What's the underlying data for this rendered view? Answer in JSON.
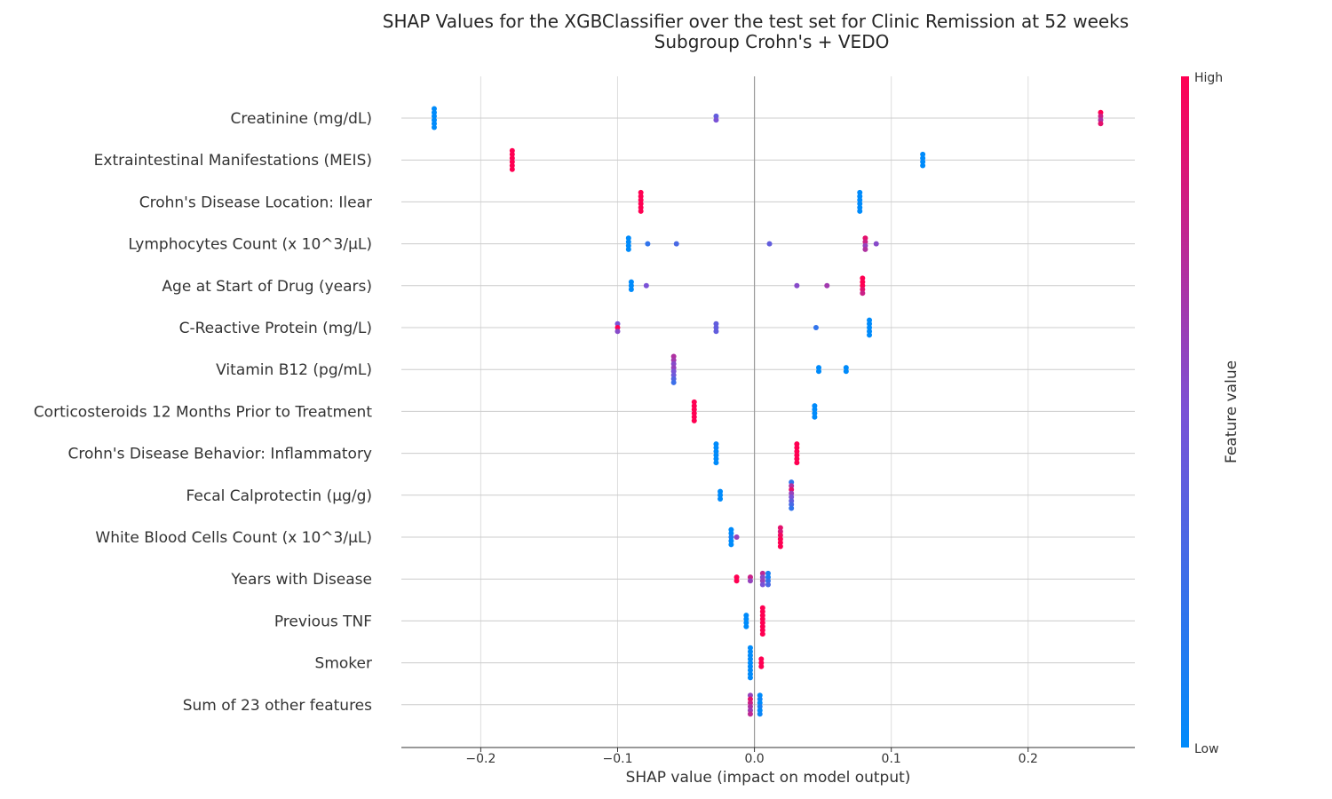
{
  "chart_data": {
    "type": "scatter",
    "subtype": "shap-beeswarm",
    "title": "SHAP Values for the XGBClassifier over the test set for Clinic Remission at 52 weeks",
    "subtitle": "Subgroup Crohn's + VEDO",
    "xlabel": "SHAP value (impact on model output)",
    "xlim": [
      -0.258,
      0.278
    ],
    "xticks": [
      -0.2,
      -0.1,
      0.0,
      0.1,
      0.2
    ],
    "xtick_labels": [
      "−0.2",
      "−0.1",
      "0.0",
      "0.1",
      "0.2"
    ],
    "grid": true,
    "colorbar": {
      "label": "Feature value",
      "high_label": "High",
      "low_label": "Low",
      "low_color": "#008bfb",
      "high_color": "#ff0052"
    },
    "features": [
      {
        "name": "Creatinine (mg/dL)",
        "points": [
          {
            "x": -0.234,
            "v": 0
          },
          {
            "x": -0.234,
            "v": 0
          },
          {
            "x": -0.234,
            "v": 0
          },
          {
            "x": -0.234,
            "v": 0
          },
          {
            "x": -0.234,
            "v": 0
          },
          {
            "x": -0.234,
            "v": 0
          },
          {
            "x": -0.028,
            "v": 0.4
          },
          {
            "x": -0.028,
            "v": 0.5
          },
          {
            "x": 0.253,
            "v": 1
          },
          {
            "x": 0.253,
            "v": 0.8
          },
          {
            "x": 0.253,
            "v": 0.7
          },
          {
            "x": 0.253,
            "v": 0.9
          }
        ]
      },
      {
        "name": "Extraintestinal Manifestations (MEIS)",
        "points": [
          {
            "x": -0.177,
            "v": 1
          },
          {
            "x": -0.177,
            "v": 1
          },
          {
            "x": -0.177,
            "v": 1
          },
          {
            "x": -0.177,
            "v": 1
          },
          {
            "x": -0.177,
            "v": 1
          },
          {
            "x": -0.177,
            "v": 1
          },
          {
            "x": 0.123,
            "v": 0
          },
          {
            "x": 0.123,
            "v": 0
          },
          {
            "x": 0.123,
            "v": 0
          },
          {
            "x": 0.123,
            "v": 0
          }
        ]
      },
      {
        "name": "Crohn's Disease Location: Ilear",
        "points": [
          {
            "x": -0.083,
            "v": 1
          },
          {
            "x": -0.083,
            "v": 1
          },
          {
            "x": -0.083,
            "v": 1
          },
          {
            "x": -0.083,
            "v": 1
          },
          {
            "x": -0.083,
            "v": 1
          },
          {
            "x": -0.083,
            "v": 1
          },
          {
            "x": 0.077,
            "v": 0
          },
          {
            "x": 0.077,
            "v": 0
          },
          {
            "x": 0.077,
            "v": 0
          },
          {
            "x": 0.077,
            "v": 0
          },
          {
            "x": 0.077,
            "v": 0
          },
          {
            "x": 0.077,
            "v": 0
          }
        ]
      },
      {
        "name": "Lymphocytes Count (x 10^3/µL)",
        "points": [
          {
            "x": -0.092,
            "v": 0
          },
          {
            "x": -0.092,
            "v": 0
          },
          {
            "x": -0.092,
            "v": 0
          },
          {
            "x": -0.092,
            "v": 0
          },
          {
            "x": -0.078,
            "v": 0.2
          },
          {
            "x": -0.057,
            "v": 0.3
          },
          {
            "x": 0.011,
            "v": 0.4
          },
          {
            "x": 0.081,
            "v": 0.9
          },
          {
            "x": 0.081,
            "v": 0.8
          },
          {
            "x": 0.081,
            "v": 0.6
          },
          {
            "x": 0.081,
            "v": 0.7
          },
          {
            "x": 0.089,
            "v": 0.55
          }
        ]
      },
      {
        "name": "Age at Start of Drug (years)",
        "points": [
          {
            "x": -0.09,
            "v": 0
          },
          {
            "x": -0.09,
            "v": 0
          },
          {
            "x": -0.09,
            "v": 0
          },
          {
            "x": -0.079,
            "v": 0.5
          },
          {
            "x": 0.031,
            "v": 0.55
          },
          {
            "x": 0.053,
            "v": 0.65
          },
          {
            "x": 0.079,
            "v": 1
          },
          {
            "x": 0.079,
            "v": 1
          },
          {
            "x": 0.079,
            "v": 1
          },
          {
            "x": 0.079,
            "v": 0.9
          },
          {
            "x": 0.079,
            "v": 0.8
          }
        ]
      },
      {
        "name": "C-Reactive Protein (mg/L)",
        "points": [
          {
            "x": -0.1,
            "v": 0.5
          },
          {
            "x": -0.1,
            "v": 1
          },
          {
            "x": -0.1,
            "v": 0.55
          },
          {
            "x": -0.028,
            "v": 0.4
          },
          {
            "x": -0.028,
            "v": 0.4
          },
          {
            "x": -0.028,
            "v": 0.4
          },
          {
            "x": 0.045,
            "v": 0.2
          },
          {
            "x": 0.084,
            "v": 0
          },
          {
            "x": 0.084,
            "v": 0
          },
          {
            "x": 0.084,
            "v": 0
          },
          {
            "x": 0.084,
            "v": 0
          },
          {
            "x": 0.084,
            "v": 0
          }
        ]
      },
      {
        "name": "Vitamin B12 (pg/mL)",
        "points": [
          {
            "x": -0.059,
            "v": 0.7
          },
          {
            "x": -0.059,
            "v": 0.65
          },
          {
            "x": -0.059,
            "v": 0.55
          },
          {
            "x": -0.059,
            "v": 0.6
          },
          {
            "x": -0.059,
            "v": 0.5
          },
          {
            "x": -0.059,
            "v": 0.45
          },
          {
            "x": -0.059,
            "v": 0.35
          },
          {
            "x": -0.059,
            "v": 0.25
          },
          {
            "x": 0.047,
            "v": 0
          },
          {
            "x": 0.047,
            "v": 0
          },
          {
            "x": 0.067,
            "v": 0
          },
          {
            "x": 0.067,
            "v": 0
          }
        ]
      },
      {
        "name": "Corticosteroids 12 Months Prior to Treatment",
        "points": [
          {
            "x": -0.044,
            "v": 1
          },
          {
            "x": -0.044,
            "v": 1
          },
          {
            "x": -0.044,
            "v": 1
          },
          {
            "x": -0.044,
            "v": 1
          },
          {
            "x": -0.044,
            "v": 1
          },
          {
            "x": -0.044,
            "v": 1
          },
          {
            "x": 0.044,
            "v": 0
          },
          {
            "x": 0.044,
            "v": 0
          },
          {
            "x": 0.044,
            "v": 0
          },
          {
            "x": 0.044,
            "v": 0
          }
        ]
      },
      {
        "name": "Crohn's Disease Behavior: Inflammatory",
        "points": [
          {
            "x": -0.028,
            "v": 0
          },
          {
            "x": -0.028,
            "v": 0
          },
          {
            "x": -0.028,
            "v": 0
          },
          {
            "x": -0.028,
            "v": 0
          },
          {
            "x": -0.028,
            "v": 0
          },
          {
            "x": -0.028,
            "v": 0
          },
          {
            "x": 0.031,
            "v": 1
          },
          {
            "x": 0.031,
            "v": 1
          },
          {
            "x": 0.031,
            "v": 1
          },
          {
            "x": 0.031,
            "v": 1
          },
          {
            "x": 0.031,
            "v": 1
          },
          {
            "x": 0.031,
            "v": 1
          }
        ]
      },
      {
        "name": "Fecal Calprotectin (µg/g)",
        "points": [
          {
            "x": -0.025,
            "v": 0
          },
          {
            "x": -0.025,
            "v": 0
          },
          {
            "x": -0.025,
            "v": 0
          },
          {
            "x": 0.027,
            "v": 0.2
          },
          {
            "x": 0.027,
            "v": 0.7
          },
          {
            "x": 0.027,
            "v": 0.9
          },
          {
            "x": 0.027,
            "v": 0.6
          },
          {
            "x": 0.027,
            "v": 0.5
          },
          {
            "x": 0.027,
            "v": 0.4
          },
          {
            "x": 0.027,
            "v": 0.3
          },
          {
            "x": 0.027,
            "v": 0.2
          }
        ]
      },
      {
        "name": "White Blood Cells Count (x 10^3/µL)",
        "points": [
          {
            "x": -0.017,
            "v": 0
          },
          {
            "x": -0.017,
            "v": 0
          },
          {
            "x": -0.017,
            "v": 0.1
          },
          {
            "x": -0.017,
            "v": 0
          },
          {
            "x": -0.017,
            "v": 0
          },
          {
            "x": -0.013,
            "v": 0.6
          },
          {
            "x": 0.019,
            "v": 0.9
          },
          {
            "x": 0.019,
            "v": 0.85
          },
          {
            "x": 0.019,
            "v": 0.95
          },
          {
            "x": 0.019,
            "v": 1
          },
          {
            "x": 0.019,
            "v": 1
          },
          {
            "x": 0.019,
            "v": 1
          }
        ]
      },
      {
        "name": "Years with Disease",
        "points": [
          {
            "x": -0.013,
            "v": 1
          },
          {
            "x": -0.013,
            "v": 1
          },
          {
            "x": -0.003,
            "v": 0.8
          },
          {
            "x": -0.003,
            "v": 0.6
          },
          {
            "x": 0.006,
            "v": 0.75
          },
          {
            "x": 0.006,
            "v": 0.55
          },
          {
            "x": 0.006,
            "v": 0.6
          },
          {
            "x": 0.006,
            "v": 0.5
          },
          {
            "x": 0.01,
            "v": 0.1
          },
          {
            "x": 0.01,
            "v": 0.1
          },
          {
            "x": 0.01,
            "v": 0.2
          },
          {
            "x": 0.01,
            "v": 0.3
          }
        ]
      },
      {
        "name": "Previous TNF",
        "points": [
          {
            "x": -0.006,
            "v": 0
          },
          {
            "x": -0.006,
            "v": 0
          },
          {
            "x": -0.006,
            "v": 0
          },
          {
            "x": -0.006,
            "v": 0
          },
          {
            "x": 0.006,
            "v": 1
          },
          {
            "x": 0.006,
            "v": 1
          },
          {
            "x": 0.006,
            "v": 1
          },
          {
            "x": 0.006,
            "v": 1
          },
          {
            "x": 0.006,
            "v": 1
          },
          {
            "x": 0.006,
            "v": 1
          },
          {
            "x": 0.006,
            "v": 1
          },
          {
            "x": 0.006,
            "v": 1
          }
        ]
      },
      {
        "name": "Smoker",
        "points": [
          {
            "x": -0.003,
            "v": 0
          },
          {
            "x": -0.003,
            "v": 0
          },
          {
            "x": -0.003,
            "v": 0
          },
          {
            "x": -0.003,
            "v": 0
          },
          {
            "x": -0.003,
            "v": 0
          },
          {
            "x": -0.003,
            "v": 0
          },
          {
            "x": -0.003,
            "v": 0
          },
          {
            "x": -0.003,
            "v": 0
          },
          {
            "x": -0.003,
            "v": 0
          },
          {
            "x": 0.005,
            "v": 1
          },
          {
            "x": 0.005,
            "v": 1
          },
          {
            "x": 0.005,
            "v": 1
          }
        ]
      },
      {
        "name": "Sum of 23 other features",
        "points": [
          {
            "x": -0.003,
            "v": 0.6
          },
          {
            "x": -0.003,
            "v": 0.9
          },
          {
            "x": -0.003,
            "v": 0.8
          },
          {
            "x": -0.003,
            "v": 0.7
          },
          {
            "x": -0.003,
            "v": 0.65
          },
          {
            "x": -0.003,
            "v": 0.75
          },
          {
            "x": 0.004,
            "v": 0
          },
          {
            "x": 0.004,
            "v": 0.05
          },
          {
            "x": 0.004,
            "v": 0
          },
          {
            "x": 0.004,
            "v": 0.1
          },
          {
            "x": 0.004,
            "v": 0
          },
          {
            "x": 0.004,
            "v": 0.05
          }
        ]
      }
    ]
  }
}
